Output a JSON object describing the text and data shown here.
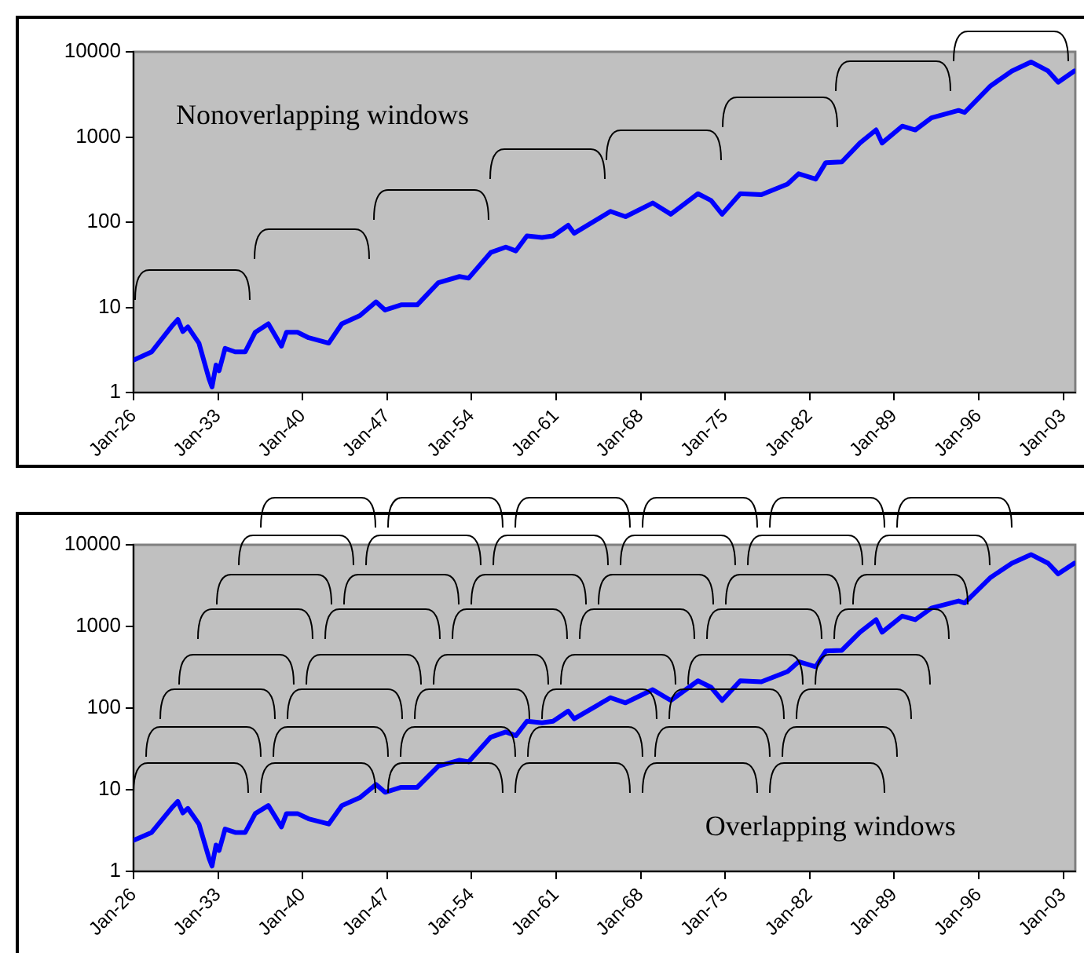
{
  "chart_data": [
    {
      "type": "line",
      "annotations": [
        "Nonoverlapping windows"
      ],
      "x": [
        "1926-01",
        "1927-07",
        "1929-03",
        "1929-09",
        "1930-02",
        "1930-07",
        "1931-06",
        "1932-04",
        "1932-07",
        "1932-11",
        "1933-02",
        "1933-08",
        "1934-06",
        "1935-04",
        "1936-02",
        "1937-03",
        "1938-04",
        "1938-09",
        "1939-08",
        "1940-07",
        "1942-03",
        "1943-04",
        "1944-10",
        "1946-02",
        "1946-11",
        "1948-03",
        "1949-07",
        "1951-04",
        "1953-01",
        "1953-10",
        "1955-08",
        "1956-11",
        "1957-09",
        "1958-08",
        "1959-11",
        "1960-10",
        "1962-01",
        "1962-07",
        "1965-07",
        "1966-10",
        "1969-01",
        "1970-07",
        "1972-10",
        "1973-11",
        "1974-10",
        "1976-04",
        "1978-01",
        "1980-03",
        "1981-02",
        "1982-07",
        "1983-05",
        "1984-09",
        "1986-03",
        "1987-07",
        "1988-01",
        "1989-09",
        "1990-10",
        "1992-02",
        "1994-05",
        "1994-11",
        "1997-01",
        "1998-10",
        "2000-05",
        "2001-10",
        "2002-08",
        "2003-12"
      ],
      "series": [
        {
          "color": "#0000ff",
          "values": [
            2.4,
            3.0,
            6.0,
            7.2,
            5.2,
            5.9,
            3.8,
            1.45,
            1.16,
            2.1,
            1.8,
            3.3,
            3.0,
            3.0,
            5.1,
            6.4,
            3.5,
            5.1,
            5.1,
            4.4,
            3.8,
            6.4,
            8.0,
            11.6,
            9.3,
            10.7,
            10.7,
            19.5,
            23,
            22,
            44,
            51,
            46,
            69,
            66,
            69,
            92,
            74,
            134,
            116,
            168,
            124,
            216,
            180,
            124,
            216,
            210,
            280,
            370,
            320,
            500,
            510,
            850,
            1210,
            850,
            1340,
            1210,
            1680,
            2050,
            1940,
            4000,
            5950,
            7600,
            5950,
            4400,
            5950
          ]
        }
      ],
      "xlim": [
        "1926-01",
        "2004-01"
      ],
      "xticks": [
        {
          "value": "1926-01",
          "label": "Jan-26"
        },
        {
          "value": "1933-01",
          "label": "Jan-33"
        },
        {
          "value": "1940-01",
          "label": "Jan-40"
        },
        {
          "value": "1947-01",
          "label": "Jan-47"
        },
        {
          "value": "1954-01",
          "label": "Jan-54"
        },
        {
          "value": "1961-01",
          "label": "Jan-61"
        },
        {
          "value": "1968-01",
          "label": "Jan-68"
        },
        {
          "value": "1975-01",
          "label": "Jan-75"
        },
        {
          "value": "1982-01",
          "label": "Jan-82"
        },
        {
          "value": "1989-01",
          "label": "Jan-89"
        },
        {
          "value": "1996-01",
          "label": "Jan-96"
        },
        {
          "value": "2003-01",
          "label": "Jan-03"
        }
      ],
      "ylim": [
        1,
        10000
      ],
      "yticks": [
        1,
        10,
        100,
        1000,
        10000
      ],
      "log": "y",
      "grid": false,
      "legend": false,
      "marker": "none",
      "line_style": "solid"
    },
    {
      "type": "line",
      "annotations": [
        "Overlapping windows"
      ],
      "x": [
        "1926-01",
        "1927-07",
        "1929-03",
        "1929-09",
        "1930-02",
        "1930-07",
        "1931-06",
        "1932-04",
        "1932-07",
        "1932-11",
        "1933-02",
        "1933-08",
        "1934-06",
        "1935-04",
        "1936-02",
        "1937-03",
        "1938-04",
        "1938-09",
        "1939-08",
        "1940-07",
        "1942-03",
        "1943-04",
        "1944-10",
        "1946-02",
        "1946-11",
        "1948-03",
        "1949-07",
        "1951-04",
        "1953-01",
        "1953-10",
        "1955-08",
        "1956-11",
        "1957-09",
        "1958-08",
        "1959-11",
        "1960-10",
        "1962-01",
        "1962-07",
        "1965-07",
        "1966-10",
        "1969-01",
        "1970-07",
        "1972-10",
        "1973-11",
        "1974-10",
        "1976-04",
        "1978-01",
        "1980-03",
        "1981-02",
        "1982-07",
        "1983-05",
        "1984-09",
        "1986-03",
        "1987-07",
        "1988-01",
        "1989-09",
        "1990-10",
        "1992-02",
        "1994-05",
        "1994-11",
        "1997-01",
        "1998-10",
        "2000-05",
        "2001-10",
        "2002-08",
        "2003-12"
      ],
      "series": [
        {
          "color": "#0000ff",
          "values": [
            2.4,
            3.0,
            6.0,
            7.2,
            5.2,
            5.9,
            3.8,
            1.45,
            1.16,
            2.1,
            1.8,
            3.3,
            3.0,
            3.0,
            5.1,
            6.4,
            3.5,
            5.1,
            5.1,
            4.4,
            3.8,
            6.4,
            8.0,
            11.6,
            9.3,
            10.7,
            10.7,
            19.5,
            23,
            22,
            44,
            51,
            46,
            69,
            66,
            69,
            92,
            74,
            134,
            116,
            168,
            124,
            216,
            180,
            124,
            216,
            210,
            280,
            370,
            320,
            500,
            510,
            850,
            1210,
            850,
            1340,
            1210,
            1680,
            2050,
            1940,
            4000,
            5950,
            7600,
            5950,
            4400,
            5950
          ]
        }
      ],
      "xlim": [
        "1926-01",
        "2004-01"
      ],
      "xticks": [
        {
          "value": "1926-01",
          "label": "Jan-26"
        },
        {
          "value": "1933-01",
          "label": "Jan-33"
        },
        {
          "value": "1940-01",
          "label": "Jan-40"
        },
        {
          "value": "1947-01",
          "label": "Jan-47"
        },
        {
          "value": "1954-01",
          "label": "Jan-54"
        },
        {
          "value": "1961-01",
          "label": "Jan-61"
        },
        {
          "value": "1968-01",
          "label": "Jan-68"
        },
        {
          "value": "1975-01",
          "label": "Jan-75"
        },
        {
          "value": "1982-01",
          "label": "Jan-82"
        },
        {
          "value": "1989-01",
          "label": "Jan-89"
        },
        {
          "value": "1996-01",
          "label": "Jan-96"
        },
        {
          "value": "2003-01",
          "label": "Jan-03"
        }
      ],
      "ylim": [
        1,
        10000
      ],
      "yticks": [
        1,
        10,
        100,
        1000,
        10000
      ],
      "log": "y",
      "grid": false,
      "legend": false,
      "marker": "none",
      "line_style": "solid"
    }
  ]
}
